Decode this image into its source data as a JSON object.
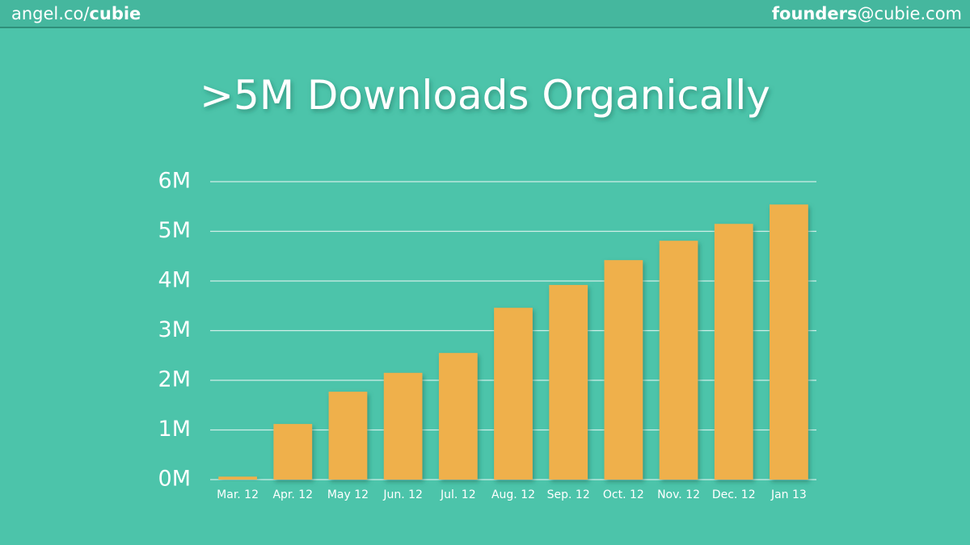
{
  "header": {
    "left": [
      "angel.co/",
      "cubie"
    ],
    "right": [
      "founders",
      "@cubie.com"
    ]
  },
  "chart_data": {
    "type": "bar",
    "title": ">5M Downloads Organically",
    "categories": [
      "Mar. 12",
      "Apr. 12",
      "May 12",
      "Jun. 12",
      "Jul. 12",
      "Aug. 12",
      "Sep. 12",
      "Oct. 12",
      "Nov. 12",
      "Dec. 12",
      "Jan 13"
    ],
    "values": [
      0.06,
      1.12,
      1.77,
      2.15,
      2.55,
      3.46,
      3.92,
      4.42,
      4.81,
      5.15,
      5.54
    ],
    "color": "#efb04b",
    "ylim": [
      0,
      6
    ],
    "yticks": [
      {
        "value": 0,
        "label": "0M"
      },
      {
        "value": 1,
        "label": "1M"
      },
      {
        "value": 2,
        "label": "2M"
      },
      {
        "value": 3,
        "label": "3M"
      },
      {
        "value": 4,
        "label": "4M"
      },
      {
        "value": 5,
        "label": "5M"
      },
      {
        "value": 6,
        "label": "6M"
      }
    ],
    "grid": true
  }
}
